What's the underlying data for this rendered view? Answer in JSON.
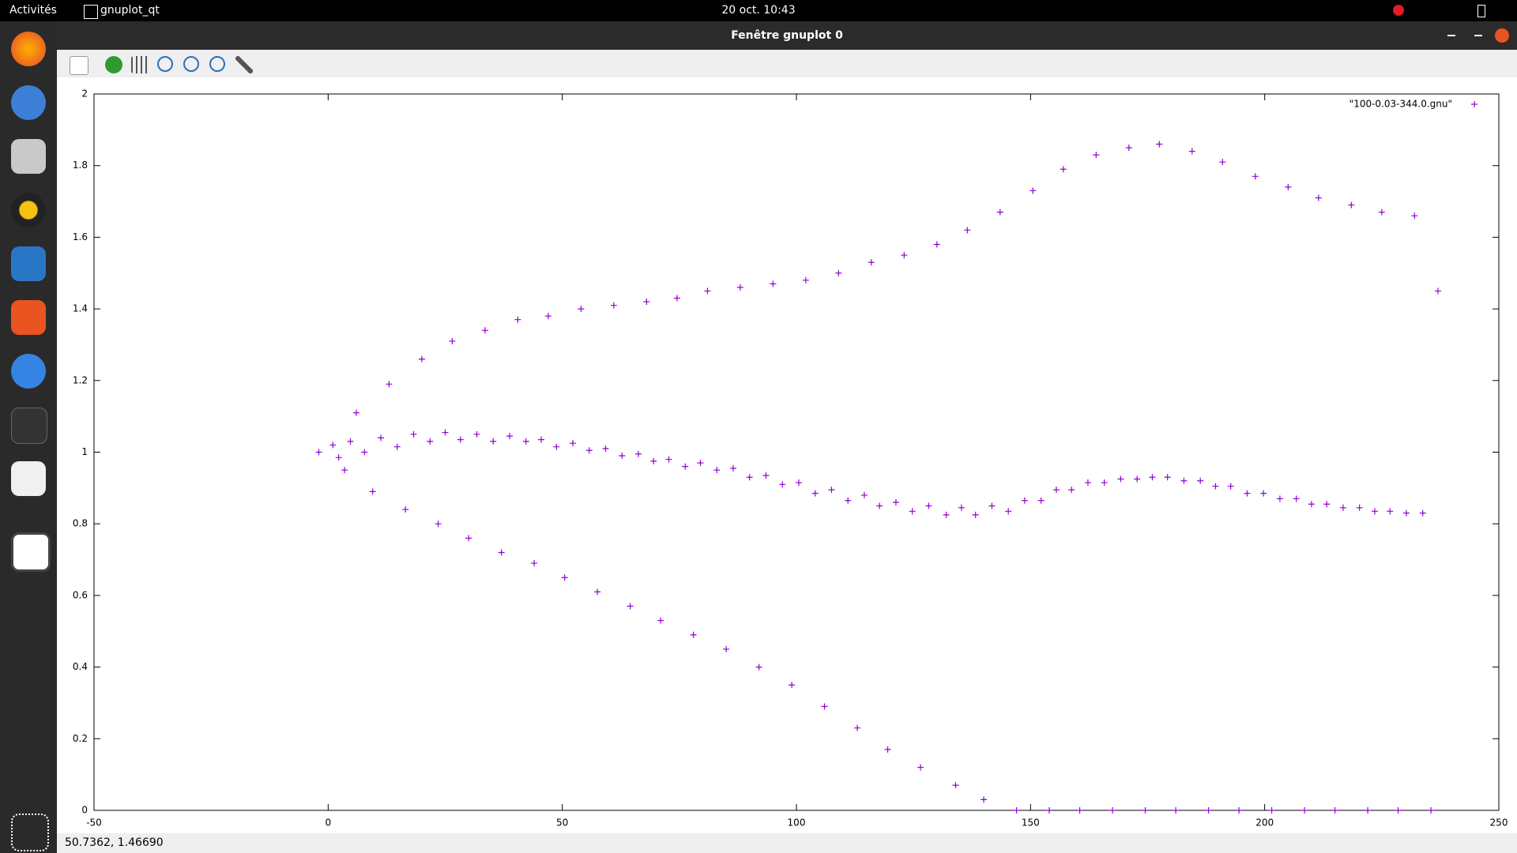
{
  "top_bar": {
    "activities": "Activités",
    "app_menu": "gnuplot_qt",
    "clock": "20 oct.  10:43"
  },
  "window": {
    "title": "Fenêtre gnuplot 0",
    "status": "50.7362,  1.46690"
  },
  "chart_data": {
    "type": "scatter",
    "xlim": [
      -50,
      250
    ],
    "xticks": [
      -50,
      0,
      50,
      100,
      150,
      200,
      250
    ],
    "ylim": [
      0,
      2
    ],
    "yticks": [
      0,
      0.2,
      0.4,
      0.6,
      0.8,
      1,
      1.2,
      1.4,
      1.6,
      1.8,
      2
    ],
    "legend": "top right",
    "marker": "+",
    "series": [
      {
        "name": "\"100-0.03-344.0.gnu\"",
        "color": "#9400d3",
        "x": [
          -2,
          1,
          2.25,
          3.5,
          4.75,
          6,
          7.75,
          9.5,
          11.25,
          13,
          14.75,
          16.5,
          18.25,
          20,
          21.75,
          23.5,
          25,
          26.5,
          28.25,
          30,
          31.75,
          33.5,
          35.25,
          37,
          38.75,
          40.5,
          42.25,
          44,
          45.5,
          47,
          48.75,
          50.5,
          52.25,
          54,
          55.75,
          57.5,
          59.25,
          61,
          62.75,
          64.5,
          66.25,
          68,
          69.5,
          71,
          72.75,
          74.5,
          76.25,
          78,
          79.5,
          81,
          83,
          85,
          86.5,
          88,
          90,
          92,
          93.5,
          95,
          97,
          99,
          100.5,
          102,
          104,
          106,
          107.5,
          109,
          111,
          113,
          114.5,
          116,
          117.75,
          119.5,
          121.25,
          123,
          124.75,
          126.5,
          128.25,
          130,
          132,
          134,
          135.25,
          136.5,
          138.25,
          140,
          141.75,
          143.5,
          145.25,
          147,
          148.75,
          150.5,
          152.25,
          154,
          155.5,
          157,
          158.75,
          160.5,
          162.25,
          164,
          165.75,
          167.5,
          169.25,
          171,
          172.75,
          174.5,
          176,
          177.5,
          179.25,
          181,
          182.75,
          184.5,
          186.25,
          188,
          189.5,
          191,
          192.75,
          194.5,
          196.25,
          198,
          199.75,
          201.5,
          203.25,
          205,
          206.75,
          208.5,
          210,
          211.5,
          213.25,
          215,
          216.75,
          218.5,
          220.25,
          222,
          223.5,
          225,
          226.75,
          228.5,
          230.25,
          232,
          233.75,
          235.5,
          237
        ],
        "values": [
          1,
          1.02,
          0.985,
          0.95,
          1.03,
          1.11,
          1,
          0.89,
          1.04,
          1.19,
          1.015,
          0.84,
          1.05,
          1.26,
          1.03,
          0.8,
          1.055,
          1.31,
          1.035,
          0.76,
          1.05,
          1.34,
          1.03,
          0.72,
          1.045,
          1.37,
          1.03,
          0.69,
          1.035,
          1.38,
          1.015,
          0.65,
          1.025,
          1.4,
          1.005,
          0.61,
          1.01,
          1.41,
          0.99,
          0.57,
          0.995,
          1.42,
          0.975,
          0.53,
          0.98,
          1.43,
          0.96,
          0.49,
          0.97,
          1.45,
          0.95,
          0.45,
          0.955,
          1.46,
          0.93,
          0.4,
          0.935,
          1.47,
          0.91,
          0.35,
          0.915,
          1.48,
          0.885,
          0.29,
          0.895,
          1.5,
          0.865,
          0.23,
          0.88,
          1.53,
          0.85,
          0.17,
          0.86,
          1.55,
          0.835,
          0.12,
          0.85,
          1.58,
          0.825,
          0.07,
          0.845,
          1.62,
          0.825,
          0.03,
          0.85,
          1.67,
          0.835,
          0,
          0.865,
          1.73,
          0.865,
          0,
          0.895,
          1.79,
          0.895,
          0,
          0.915,
          1.83,
          0.915,
          0,
          0.925,
          1.85,
          0.925,
          0,
          0.93,
          1.86,
          0.93,
          0,
          0.92,
          1.84,
          0.92,
          0,
          0.905,
          1.81,
          0.905,
          0,
          0.885,
          1.77,
          0.885,
          0,
          0.87,
          1.74,
          0.87,
          0,
          0.855,
          1.71,
          0.855,
          0,
          0.845,
          1.69,
          0.845,
          0,
          0.835,
          1.67,
          0.835,
          0,
          0.83,
          1.66,
          0.83,
          0,
          1.45
        ]
      }
    ]
  }
}
